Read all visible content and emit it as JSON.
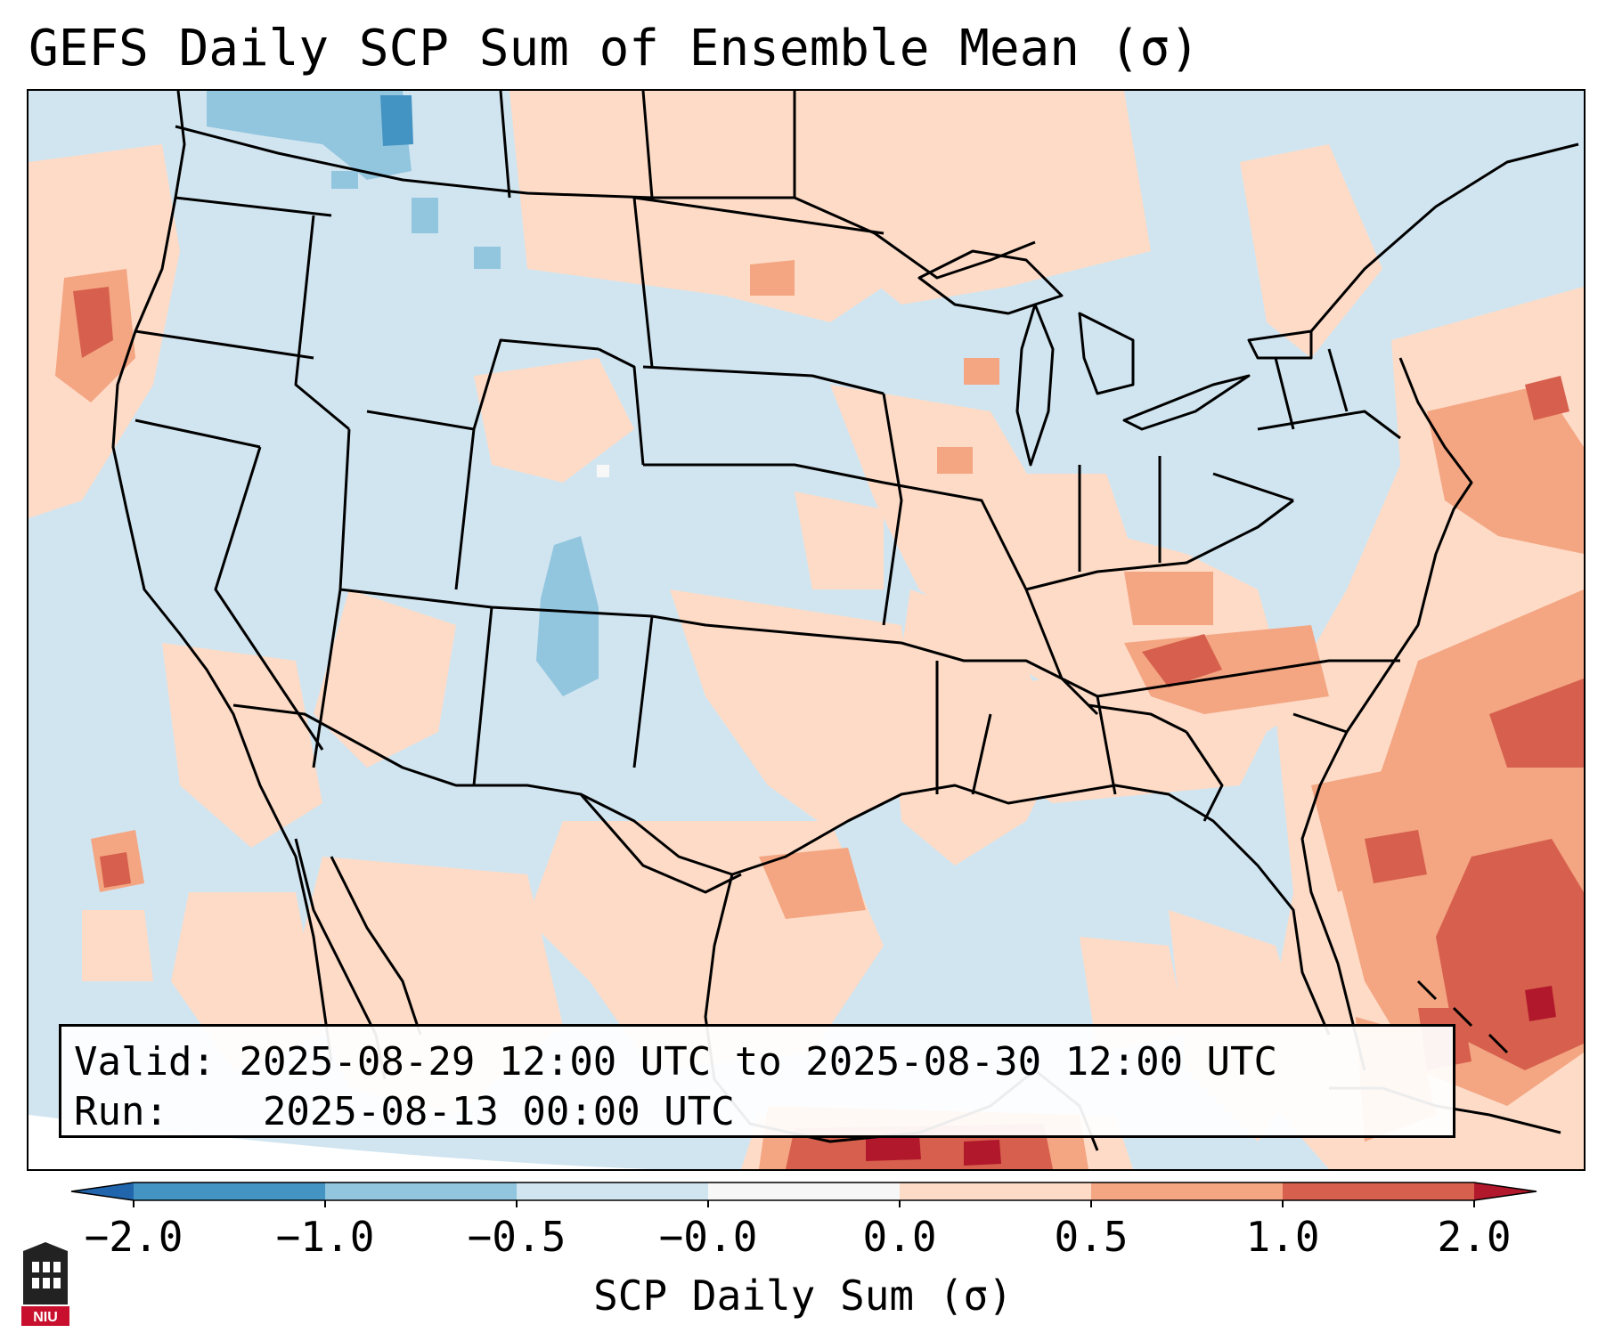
{
  "title": "GEFS Daily SCP Sum of Ensemble Mean (σ)",
  "info": {
    "valid_label": "Valid:",
    "valid_value": "2025-08-29 12:00 UTC to 2025-08-30 12:00 UTC",
    "run_label": "Run:",
    "run_value": "2025-08-13 00:00 UTC"
  },
  "colorbar": {
    "label": "SCP Daily Sum (σ)",
    "ticks": [
      "−2.0",
      "−1.0",
      "−0.5",
      "−0.0",
      "0.0",
      "0.5",
      "1.0",
      "2.0"
    ],
    "bins": [
      {
        "range": "< −2.0",
        "color": "#2166ac"
      },
      {
        "range": "−2.0 to −1.0",
        "color": "#4393c3"
      },
      {
        "range": "−1.0 to −0.5",
        "color": "#92c5de"
      },
      {
        "range": "−0.5 to −0.0",
        "color": "#d1e5f0"
      },
      {
        "range": "−0.0 to 0.0",
        "color": "#f7f7f7"
      },
      {
        "range": "0.0 to 0.5",
        "color": "#fddbc7"
      },
      {
        "range": "0.5 to 1.0",
        "color": "#f4a582"
      },
      {
        "range": "1.0 to 2.0",
        "color": "#d6604d"
      },
      {
        "range": "> 2.0",
        "color": "#b2182b"
      }
    ]
  },
  "map": {
    "projection": "Lambert Conformal, CONUS",
    "background_color": "#d1e5f0",
    "features": [
      "coastlines",
      "country borders",
      "state borders"
    ]
  },
  "logo": {
    "text": "NIU",
    "name": "Northern Illinois University"
  }
}
